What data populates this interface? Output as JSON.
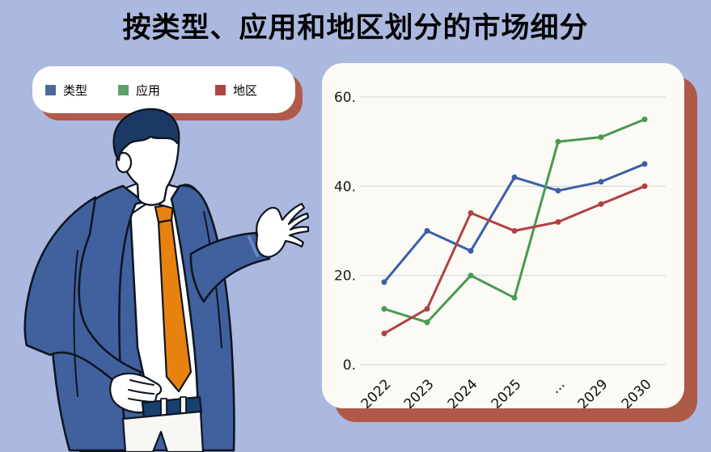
{
  "title": "按类型、应用和地区划分的市场细分",
  "colors": {
    "background": "#ABB8DF",
    "card": "#FFFFFF",
    "panel": "#FBFAF4",
    "shadow": "#AD5A48",
    "grid": "#D9D9D3",
    "legend_swatches": [
      "#4A6B9B",
      "#5CA266",
      "#AE4440"
    ]
  },
  "legend": {
    "items": [
      "类型",
      "应用",
      "地区"
    ]
  },
  "chart_data": {
    "type": "line",
    "title": "按类型、应用和地区划分的市场细分",
    "categories": [
      "2022",
      "2023",
      "2024",
      "2025",
      "...",
      "2029",
      "2030"
    ],
    "series": [
      {
        "name": "类型",
        "color": "#3A5FA8",
        "values": [
          18.5,
          30,
          25.5,
          42,
          39,
          41,
          45
        ]
      },
      {
        "name": "应用",
        "color": "#479A52",
        "values": [
          12.5,
          9.5,
          20,
          15,
          50,
          51,
          55
        ]
      },
      {
        "name": "地区",
        "color": "#B04143",
        "values": [
          7,
          12.5,
          34,
          30,
          32,
          36,
          40
        ]
      }
    ],
    "y_ticks": [
      {
        "label": "60.",
        "value": 60
      },
      {
        "label": "40.",
        "value": 40
      },
      {
        "label": "20.",
        "value": 20
      },
      {
        "label": "0.",
        "value": 0
      }
    ],
    "xlabel": "",
    "ylabel": "",
    "ylim": [
      0,
      65
    ],
    "grid": "horizontal",
    "legend_position": "top-left-card",
    "marker": "circle"
  }
}
